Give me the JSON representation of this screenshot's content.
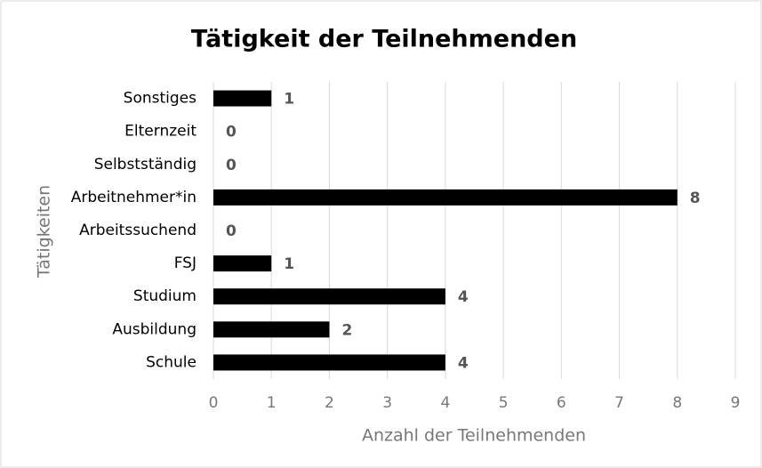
{
  "chart_data": {
    "type": "bar",
    "orientation": "horizontal",
    "title": "Tätigkeit der Teilnehmenden",
    "x_label": "Anzahl der Teilnehmenden",
    "y_label": "Tätigkeiten",
    "categories": [
      "Sonstiges",
      "Elternzeit",
      "Selbstständig",
      "Arbeitnehmer*in",
      "Arbeitssuchend",
      "FSJ",
      "Studium",
      "Ausbildung",
      "Schule"
    ],
    "values": [
      1,
      0,
      0,
      8,
      0,
      1,
      4,
      2,
      4
    ],
    "color": "#000000",
    "xlim": [
      0,
      9
    ],
    "xticks": [
      0,
      1,
      2,
      3,
      4,
      5,
      6,
      7,
      8,
      9
    ],
    "grid": true
  }
}
